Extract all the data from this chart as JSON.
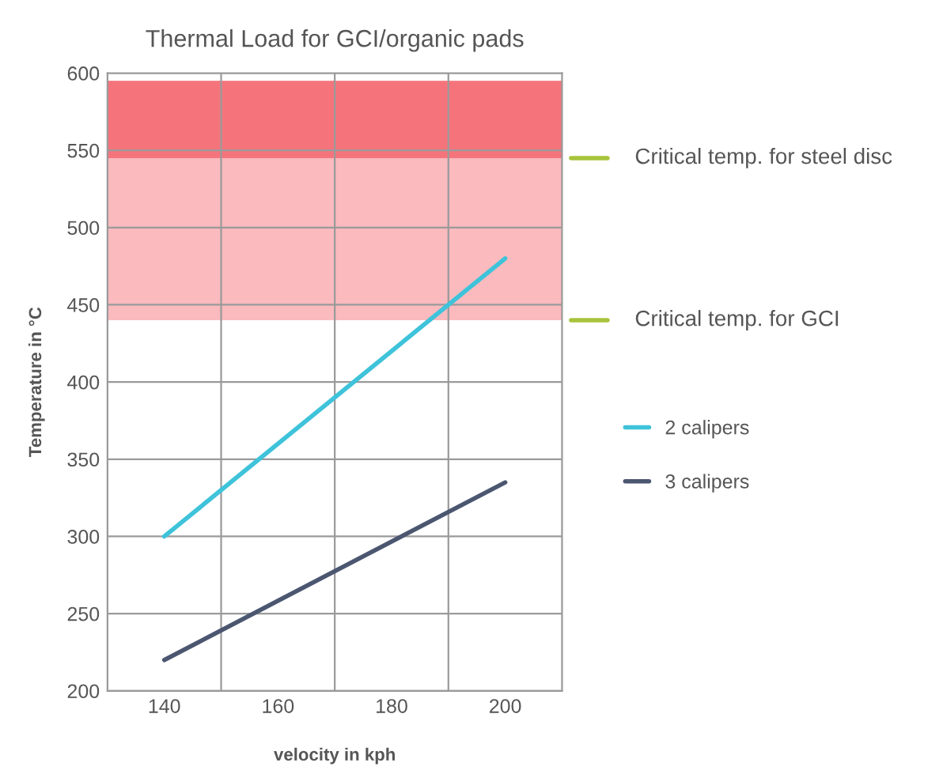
{
  "chart_data": {
    "type": "line",
    "title": "Thermal Load for GCI/organic pads",
    "xlabel": "velocity in kph",
    "ylabel": "Temperature in °C",
    "x": [
      140,
      200
    ],
    "series": [
      {
        "name": "2 calipers",
        "color": "#3ec3da",
        "values": [
          300,
          480
        ]
      },
      {
        "name": "3 calipers",
        "color": "#4b5670",
        "values": [
          220,
          335
        ]
      }
    ],
    "xlim": [
      130,
      210
    ],
    "xticks": [
      140,
      {
        "value": 150,
        "label": null
      },
      160,
      {
        "value": 170,
        "label": null
      },
      180,
      {
        "value": 190,
        "label": null
      },
      200
    ],
    "ylim": [
      200,
      600
    ],
    "yticks": [
      200,
      250,
      300,
      350,
      400,
      450,
      500,
      550,
      600
    ],
    "bands": [
      {
        "axis": "y",
        "from": 440,
        "to": 595,
        "color": "#f9a9ae"
      },
      {
        "axis": "y",
        "from": 545,
        "to": 595,
        "color": "#f4636b"
      }
    ],
    "ref_lines": [
      {
        "axis": "y",
        "value": 545,
        "label": "Critical temp. for steel disc",
        "color": "#a8c43c"
      },
      {
        "axis": "y",
        "value": 440,
        "label": "Critical temp. for GCI",
        "color": "#a8c43c"
      }
    ],
    "grid": true,
    "legend": "right",
    "marker": "none",
    "line_style": "solid"
  }
}
